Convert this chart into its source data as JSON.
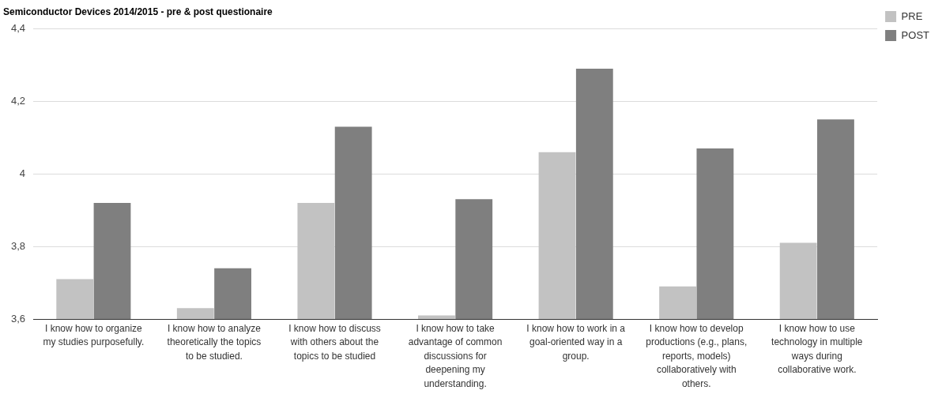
{
  "chart_data": {
    "type": "bar",
    "title": "Semiconductor Devices 2014/2015 - pre & post questionaire",
    "categories": [
      "I know how to organize my studies purposefully.",
      "I know how to analyze theoretically the topics to be studied.",
      "I know how to discuss with others about the topics to be studied",
      "I know how to take advantage of common discussions for deepening my understanding.",
      "I know how to work in a goal-oriented way in a group.",
      "I know how to develop productions (e.g., plans, reports, models) collaboratively with others.",
      "I know how to use technology in multiple ways during collaborative work."
    ],
    "series": [
      {
        "name": "PRE",
        "color": "#c2c2c2",
        "values": [
          3.71,
          3.63,
          3.92,
          3.61,
          4.06,
          3.69,
          3.81
        ]
      },
      {
        "name": "POST",
        "color": "#7f7f7f",
        "values": [
          3.92,
          3.74,
          4.13,
          3.93,
          4.29,
          4.07,
          4.15
        ]
      }
    ],
    "ylim": [
      3.6,
      4.4
    ],
    "yticks": [
      {
        "value": 3.6,
        "label": "3,6"
      },
      {
        "value": 3.8,
        "label": "3,8"
      },
      4,
      {
        "value": 4.2,
        "label": "4,2"
      },
      {
        "value": 4.4,
        "label": "4,4"
      }
    ],
    "grid": "y",
    "legend": "top right"
  }
}
